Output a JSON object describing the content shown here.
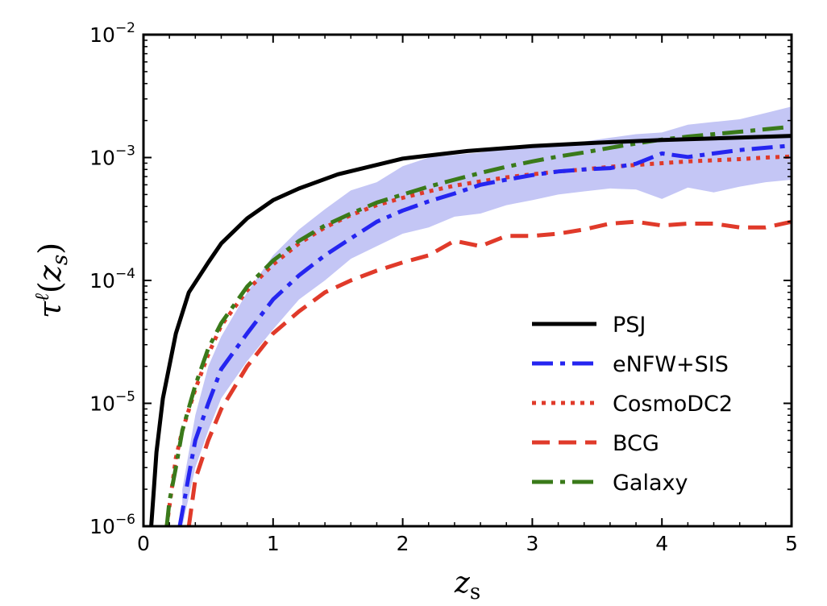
{
  "chart_data": {
    "type": "line",
    "xlabel": "z_s",
    "ylabel": "τ^ℓ(z_s)",
    "xlim": [
      0,
      5
    ],
    "ylim": [
      1e-06,
      0.01
    ],
    "yscale": "log",
    "xticks": [
      0,
      1,
      2,
      3,
      4,
      5
    ],
    "yticks": [
      {
        "value": 1e-06,
        "base": "10",
        "exp": "−6"
      },
      {
        "value": 1e-05,
        "base": "10",
        "exp": "−5"
      },
      {
        "value": 0.0001,
        "base": "10",
        "exp": "−4"
      },
      {
        "value": 0.001,
        "base": "10",
        "exp": "−3"
      },
      {
        "value": 0.01,
        "base": "10",
        "exp": "−2"
      }
    ],
    "grid": false,
    "legend_position": "lower-right",
    "band": {
      "color": "#c4c6f5",
      "x": [
        0.3,
        0.4,
        0.5,
        0.6,
        0.8,
        1.0,
        1.2,
        1.4,
        1.6,
        1.8,
        2.0,
        2.2,
        2.4,
        2.6,
        2.8,
        3.0,
        3.2,
        3.4,
        3.6,
        3.8,
        4.0,
        4.2,
        4.4,
        4.6,
        4.8,
        5.0
      ],
      "lower": [
        1e-06,
        3e-06,
        6e-06,
        1.1e-05,
        2.2e-05,
        4e-05,
        7e-05,
        0.0001,
        0.00015,
        0.00019,
        0.00024,
        0.00027,
        0.00033,
        0.00035,
        0.00041,
        0.00045,
        0.0005,
        0.00053,
        0.00056,
        0.00055,
        0.00046,
        0.00057,
        0.00052,
        0.00058,
        0.00063,
        0.00066
      ],
      "upper": [
        2e-06,
        8e-06,
        2e-05,
        3.5e-05,
        8e-05,
        0.00016,
        0.00026,
        0.00038,
        0.00054,
        0.00063,
        0.00085,
        0.001,
        0.00105,
        0.0011,
        0.0012,
        0.00125,
        0.0013,
        0.00135,
        0.00145,
        0.00155,
        0.0016,
        0.00185,
        0.00195,
        0.00205,
        0.0023,
        0.0026
      ]
    },
    "series": [
      {
        "name": "PSJ",
        "color": "#000000",
        "dash": "solid",
        "x": [
          0.06,
          0.08,
          0.1,
          0.15,
          0.25,
          0.35,
          0.5,
          0.6,
          0.8,
          1.0,
          1.2,
          1.5,
          2.0,
          2.5,
          3.0,
          3.5,
          4.0,
          4.5,
          5.0
        ],
        "y": [
          1e-06,
          2e-06,
          4e-06,
          1.1e-05,
          3.7e-05,
          8e-05,
          0.00014,
          0.0002,
          0.00032,
          0.00045,
          0.00056,
          0.00073,
          0.00098,
          0.00113,
          0.00124,
          0.00132,
          0.00139,
          0.00144,
          0.0015
        ]
      },
      {
        "name": "eNFW+SIS",
        "color": "#2525f0",
        "dash": "dashdot",
        "x": [
          0.28,
          0.35,
          0.4,
          0.5,
          0.6,
          0.8,
          1.0,
          1.2,
          1.4,
          1.6,
          1.8,
          2.0,
          2.2,
          2.4,
          2.6,
          2.8,
          3.0,
          3.2,
          3.4,
          3.6,
          3.8,
          4.0,
          4.2,
          4.4,
          4.6,
          4.8,
          5.0
        ],
        "y": [
          1e-06,
          2.6e-06,
          5e-06,
          1e-05,
          1.9e-05,
          3.7e-05,
          7e-05,
          0.00011,
          0.00016,
          0.00022,
          0.0003,
          0.00037,
          0.00044,
          0.00051,
          0.0006,
          0.00066,
          0.00072,
          0.00077,
          0.0008,
          0.00082,
          0.00089,
          0.00108,
          0.00101,
          0.00108,
          0.00115,
          0.0012,
          0.00125
        ]
      },
      {
        "name": "CosmoDC2",
        "color": "#e03a2a",
        "dash": "dotted",
        "x": [
          0.18,
          0.25,
          0.3,
          0.4,
          0.5,
          0.6,
          0.8,
          1.0,
          1.2,
          1.4,
          1.6,
          1.8,
          2.0,
          2.2,
          2.4,
          2.6,
          2.8,
          3.0,
          3.2,
          3.4,
          3.6,
          3.8,
          4.0,
          4.2,
          4.4,
          4.6,
          4.8,
          5.0
        ],
        "y": [
          1e-06,
          3.6e-06,
          6e-06,
          1.3e-05,
          2.5e-05,
          4.3e-05,
          8.3e-05,
          0.000135,
          0.0002,
          0.00027,
          0.00034,
          0.00041,
          0.00047,
          0.00053,
          0.00059,
          0.00064,
          0.00069,
          0.00073,
          0.00077,
          0.0008,
          0.00084,
          0.00087,
          0.0009,
          0.00093,
          0.00095,
          0.00097,
          0.001,
          0.00102
        ]
      },
      {
        "name": "BCG",
        "color": "#e03a2a",
        "dash": "dashed",
        "x": [
          0.35,
          0.4,
          0.5,
          0.6,
          0.8,
          1.0,
          1.2,
          1.4,
          1.6,
          1.8,
          2.0,
          2.2,
          2.4,
          2.6,
          2.8,
          3.0,
          3.2,
          3.4,
          3.6,
          3.8,
          4.0,
          4.2,
          4.4,
          4.6,
          4.8,
          5.0
        ],
        "y": [
          1e-06,
          2.4e-06,
          5e-06,
          9e-06,
          2e-05,
          3.7e-05,
          5.6e-05,
          8e-05,
          0.0001,
          0.00012,
          0.00014,
          0.00016,
          0.00021,
          0.00019,
          0.00023,
          0.00023,
          0.00024,
          0.00026,
          0.00029,
          0.0003,
          0.00028,
          0.00029,
          0.00029,
          0.00027,
          0.00027,
          0.0003
        ]
      },
      {
        "name": "Galaxy",
        "color": "#3a7a1a",
        "dash": "dashdot",
        "x": [
          0.18,
          0.2,
          0.25,
          0.3,
          0.4,
          0.5,
          0.6,
          0.8,
          1.0,
          1.2,
          1.4,
          1.6,
          1.8,
          2.0,
          2.2,
          2.4,
          2.6,
          2.8,
          3.0,
          3.2,
          3.4,
          3.6,
          3.8,
          4.0,
          4.2,
          4.4,
          4.6,
          4.8,
          5.0
        ],
        "y": [
          1e-06,
          1.6e-06,
          3e-06,
          6e-06,
          1.4e-05,
          2.8e-05,
          4.5e-05,
          8.9e-05,
          0.000145,
          0.00021,
          0.00028,
          0.00035,
          0.00043,
          0.0005,
          0.00058,
          0.00066,
          0.00075,
          0.00084,
          0.00093,
          0.00102,
          0.0011,
          0.0012,
          0.0013,
          0.0014,
          0.00148,
          0.00155,
          0.00162,
          0.0017,
          0.00178
        ]
      }
    ]
  }
}
